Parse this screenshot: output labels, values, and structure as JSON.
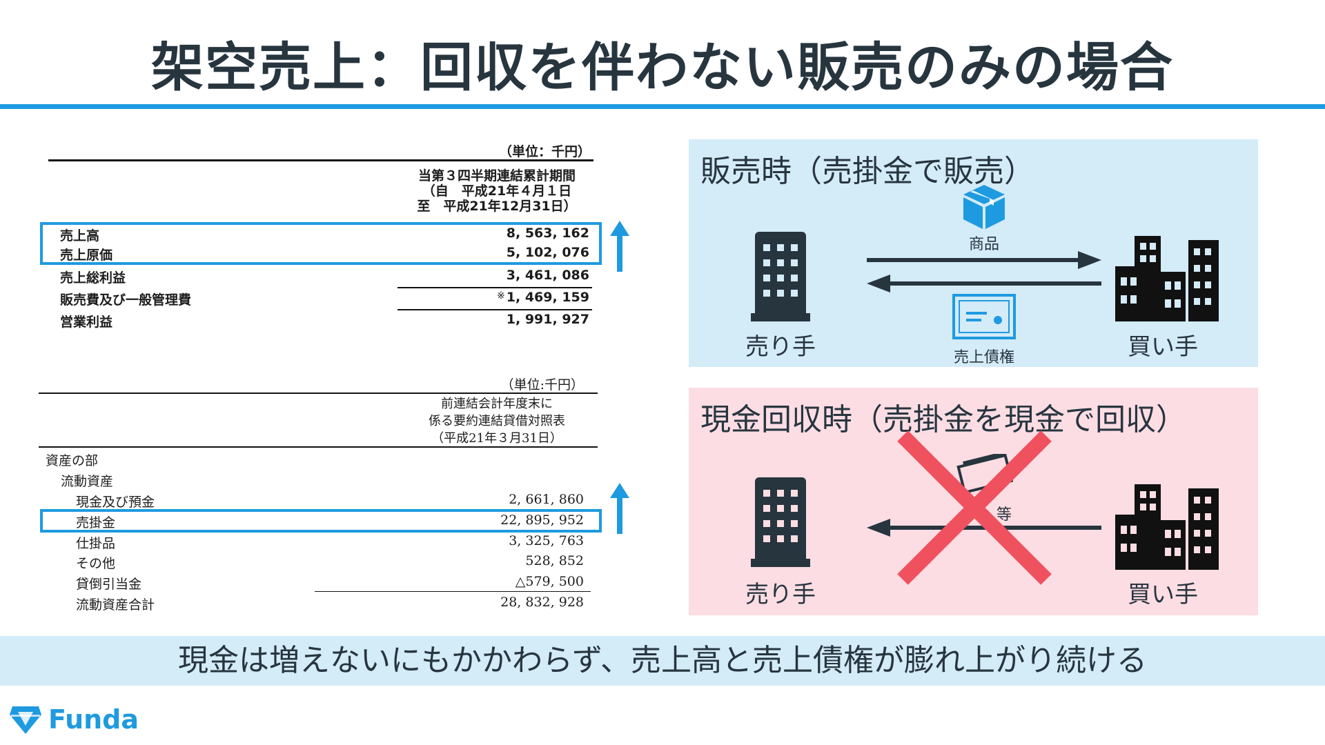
{
  "title": "架空売上：回収を伴わない販売のみの場合",
  "income_statement": {
    "unit": "（単位：千円）",
    "header_lines": [
      "当第３四半期連結累計期間",
      "（自　平成21年４月１日",
      "至　平成21年12月31日）"
    ],
    "rows": [
      {
        "label": "売上高",
        "value": "8, 563, 162"
      },
      {
        "label": "売上原価",
        "value": "5, 102, 076"
      },
      {
        "label": "売上総利益",
        "value": "3, 461, 086"
      },
      {
        "label": "販売費及び一般管理費",
        "note": "※",
        "value": "1, 469, 159"
      },
      {
        "label": "営業利益",
        "value": "1, 991, 927"
      }
    ]
  },
  "balance_sheet": {
    "unit": "（単位:千円）",
    "header_lines": [
      "前連結会計年度末に",
      "係る要約連結貸借対照表",
      "（平成21年３月31日）"
    ],
    "rows": [
      {
        "label": "資産の部",
        "value": ""
      },
      {
        "label": "流動資産",
        "value": ""
      },
      {
        "label": "現金及び預金",
        "value": "2, 661, 860"
      },
      {
        "label": "売掛金",
        "value": "22, 895, 952"
      },
      {
        "label": "仕掛品",
        "value": "3, 325, 763"
      },
      {
        "label": "その他",
        "value": "528, 852"
      },
      {
        "label": "貸倒引当金",
        "value": "△579, 500"
      },
      {
        "label": "流動資産合計",
        "value": "28, 832, 928"
      }
    ]
  },
  "panel_sales": {
    "title": "販売時（売掛金で販売）",
    "seller": "売り手",
    "buyer": "買い手",
    "goods": "商品",
    "receivable": "売上債権"
  },
  "panel_collection": {
    "title": "現金回収時（売掛金を現金で回収）",
    "seller": "売り手",
    "buyer": "買い手",
    "cash_suffix": "等"
  },
  "bottom_message": "現金は増えないにもかかわらず、売上高と売上債権が膨れ上がり続ける",
  "logo_text": "Funda",
  "colors": {
    "accent": "#1e9ae0",
    "cross": "#f0515e",
    "panel_blue": "#d4ebf8",
    "panel_pink": "#fbdde3",
    "dark": "#27353f"
  }
}
